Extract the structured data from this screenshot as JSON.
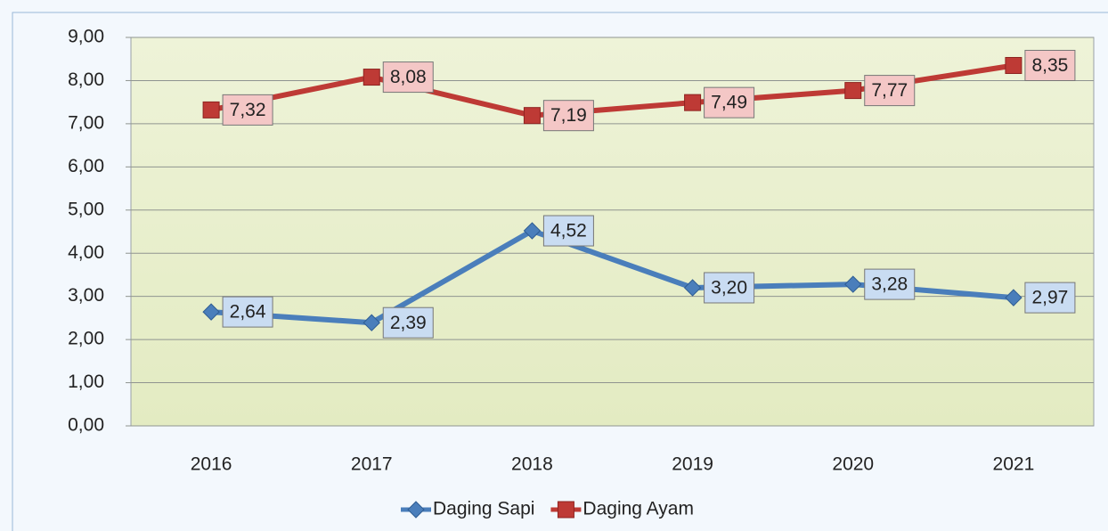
{
  "chart_data": {
    "type": "line",
    "categories": [
      "2016",
      "2017",
      "2018",
      "2019",
      "2020",
      "2021"
    ],
    "series": [
      {
        "name": "Daging Sapi",
        "color": "#4a7ebb",
        "marker": "diamond",
        "label_fill": "#c9dcf2",
        "values": [
          2.64,
          2.39,
          4.52,
          3.2,
          3.28,
          2.97
        ],
        "value_labels": [
          "2,64",
          "2,39",
          "4,52",
          "3,20",
          "3,28",
          "2,97"
        ]
      },
      {
        "name": "Daging Ayam",
        "color": "#be3a35",
        "marker": "square",
        "label_fill": "#f4c7c6",
        "values": [
          7.32,
          8.08,
          7.19,
          7.49,
          7.77,
          8.35
        ],
        "value_labels": [
          "7,32",
          "8,08",
          "7,19",
          "7,49",
          "7,77",
          "8,35"
        ]
      }
    ],
    "ylim": [
      0,
      9
    ],
    "yticks": [
      {
        "value": 0,
        "label": "0,00"
      },
      {
        "value": 1,
        "label": "1,00"
      },
      {
        "value": 2,
        "label": "2,00"
      },
      {
        "value": 3,
        "label": "3,00"
      },
      {
        "value": 4,
        "label": "4,00"
      },
      {
        "value": 5,
        "label": "5,00"
      },
      {
        "value": 6,
        "label": "6,00"
      },
      {
        "value": 7,
        "label": "7,00"
      },
      {
        "value": 8,
        "label": "8,00"
      },
      {
        "value": 9,
        "label": "9,00"
      }
    ],
    "grid": true,
    "legend": "bottom"
  }
}
